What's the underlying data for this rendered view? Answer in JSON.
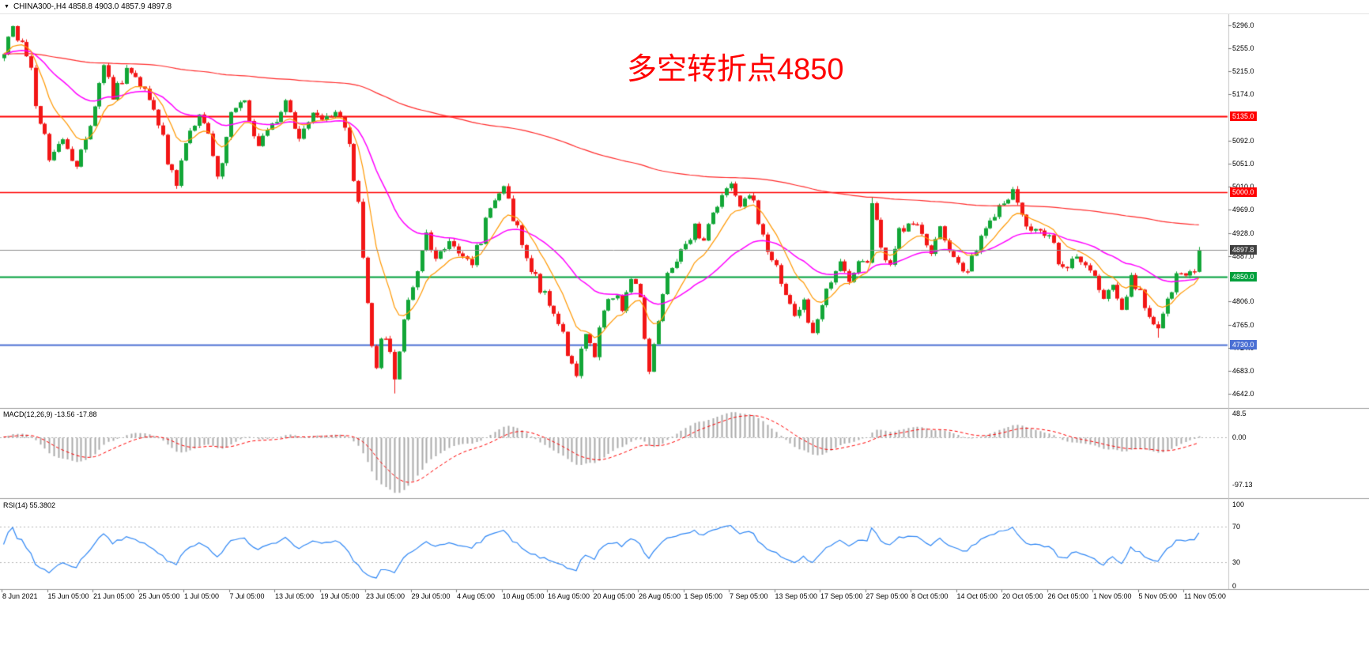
{
  "header": {
    "dropdown_icon": "▼",
    "symbol_line": "CHINA300-,H4 4858.8 4903.0 4857.9 4897.8",
    "symbol": "CHINA300-",
    "timeframe": "H4",
    "open": "4858.8",
    "high": "4903.0",
    "low": "4857.9",
    "close": "4897.8"
  },
  "annotation": {
    "text": "多空转折点4850",
    "color": "#ff0000"
  },
  "chart_data": {
    "type": "candlestick",
    "symbol": "CHINA300-",
    "timeframe": "H4",
    "x_labels": [
      "8 Jun 2021",
      "15 Jun 05:00",
      "21 Jun 05:00",
      "25 Jun 05:00",
      "1 Jul 05:00",
      "7 Jul 05:00",
      "13 Jul 05:00",
      "19 Jul 05:00",
      "23 Jul 05:00",
      "29 Jul 05:00",
      "4 Aug 05:00",
      "10 Aug 05:00",
      "16 Aug 05:00",
      "20 Aug 05:00",
      "26 Aug 05:00",
      "1 Sep 05:00",
      "7 Sep 05:00",
      "13 Sep 05:00",
      "17 Sep 05:00",
      "27 Sep 05:00",
      "8 Oct 05:00",
      "14 Oct 05:00",
      "20 Oct 05:00",
      "26 Oct 05:00",
      "1 Nov 05:00",
      "5 Nov 05:00",
      "11 Nov 05:00"
    ],
    "main": {
      "ylim": [
        4620,
        5316
      ],
      "y_ticks": [
        "5296.0",
        "5255.0",
        "5215.0",
        "5174.0",
        "5092.0",
        "5051.0",
        "5010.0",
        "4969.0",
        "4928.0",
        "4887.0",
        "4806.0",
        "4765.0",
        "4724.0",
        "4683.0",
        "4642.0"
      ],
      "price_levels": [
        {
          "value": 5135.0,
          "label": "5135.0",
          "color": "#ff0000",
          "line_color": "#ff0000",
          "line_width": 2
        },
        {
          "value": 5000.0,
          "label": "5000.0",
          "color": "#ff0000",
          "line_color": "#ff0000",
          "line_width": 1.5
        },
        {
          "value": 4850.0,
          "label": "4850.0",
          "color": "#00a03c",
          "line_color": "#00a03c",
          "line_width": 2
        },
        {
          "value": 4730.0,
          "label": "4730.0",
          "color": "#4a6fd4",
          "line_color": "#4a6fd4",
          "line_width": 2
        }
      ],
      "current_price": {
        "value": 4897.8,
        "label": "4897.8",
        "bg": "#3f3f3f",
        "line_color": "#909090"
      },
      "ohlc_current": {
        "open": 4858.8,
        "high": 4903.0,
        "low": 4857.9,
        "close": 4897.8
      },
      "bull_color": "#12a637",
      "bear_color": "#f21616",
      "first_open": 5238,
      "candles_n": 264,
      "seed": 20211111,
      "close_anchors": [
        [
          0,
          5245
        ],
        [
          2,
          5288
        ],
        [
          5,
          5255
        ],
        [
          7,
          5160
        ],
        [
          10,
          5060
        ],
        [
          13,
          5095
        ],
        [
          16,
          5040
        ],
        [
          20,
          5140
        ],
        [
          22,
          5225
        ],
        [
          24,
          5170
        ],
        [
          27,
          5215
        ],
        [
          30,
          5195
        ],
        [
          33,
          5150
        ],
        [
          36,
          5060
        ],
        [
          38,
          5015
        ],
        [
          40,
          5085
        ],
        [
          43,
          5145
        ],
        [
          45,
          5110
        ],
        [
          47,
          5030
        ],
        [
          50,
          5135
        ],
        [
          53,
          5165
        ],
        [
          56,
          5085
        ],
        [
          60,
          5125
        ],
        [
          62,
          5165
        ],
        [
          65,
          5100
        ],
        [
          68,
          5140
        ],
        [
          70,
          5130
        ],
        [
          74,
          5140
        ],
        [
          76,
          5090
        ],
        [
          78,
          4980
        ],
        [
          80,
          4790
        ],
        [
          82,
          4700
        ],
        [
          84,
          4760
        ],
        [
          86,
          4660
        ],
        [
          88,
          4780
        ],
        [
          90,
          4840
        ],
        [
          91,
          4860
        ],
        [
          93,
          4930
        ],
        [
          95,
          4880
        ],
        [
          98,
          4920
        ],
        [
          100,
          4900
        ],
        [
          103,
          4865
        ],
        [
          106,
          4950
        ],
        [
          108,
          4990
        ],
        [
          110,
          5005
        ],
        [
          112,
          4960
        ],
        [
          114,
          4900
        ],
        [
          116,
          4865
        ],
        [
          118,
          4830
        ],
        [
          120,
          4810
        ],
        [
          122,
          4770
        ],
        [
          124,
          4715
        ],
        [
          126,
          4680
        ],
        [
          128,
          4750
        ],
        [
          130,
          4720
        ],
        [
          132,
          4780
        ],
        [
          134,
          4820
        ],
        [
          136,
          4800
        ],
        [
          138,
          4840
        ],
        [
          140,
          4820
        ],
        [
          142,
          4690
        ],
        [
          143,
          4745
        ],
        [
          145,
          4820
        ],
        [
          147,
          4870
        ],
        [
          150,
          4905
        ],
        [
          152,
          4940
        ],
        [
          154,
          4915
        ],
        [
          156,
          4960
        ],
        [
          158,
          4995
        ],
        [
          160,
          5015
        ],
        [
          162,
          4980
        ],
        [
          164,
          5000
        ],
        [
          166,
          4950
        ],
        [
          168,
          4900
        ],
        [
          170,
          4870
        ],
        [
          172,
          4820
        ],
        [
          174,
          4780
        ],
        [
          176,
          4800
        ],
        [
          178,
          4748
        ],
        [
          180,
          4800
        ],
        [
          182,
          4840
        ],
        [
          184,
          4870
        ],
        [
          186,
          4850
        ],
        [
          188,
          4880
        ],
        [
          190,
          4860
        ],
        [
          191,
          4990
        ],
        [
          192,
          4940
        ],
        [
          193,
          4900
        ],
        [
          195,
          4870
        ],
        [
          197,
          4930
        ],
        [
          200,
          4950
        ],
        [
          202,
          4920
        ],
        [
          204,
          4880
        ],
        [
          206,
          4930
        ],
        [
          208,
          4900
        ],
        [
          210,
          4870
        ],
        [
          212,
          4850
        ],
        [
          214,
          4900
        ],
        [
          216,
          4930
        ],
        [
          218,
          4960
        ],
        [
          220,
          4985
        ],
        [
          222,
          5000
        ],
        [
          224,
          4960
        ],
        [
          226,
          4930
        ],
        [
          228,
          4940
        ],
        [
          230,
          4920
        ],
        [
          232,
          4880
        ],
        [
          234,
          4860
        ],
        [
          236,
          4890
        ],
        [
          238,
          4870
        ],
        [
          240,
          4850
        ],
        [
          242,
          4810
        ],
        [
          244,
          4830
        ],
        [
          246,
          4800
        ],
        [
          248,
          4850
        ],
        [
          250,
          4820
        ],
        [
          252,
          4780
        ],
        [
          254,
          4760
        ],
        [
          256,
          4810
        ],
        [
          258,
          4860
        ],
        [
          260,
          4855
        ],
        [
          262,
          4858.8
        ],
        [
          263,
          4897.8
        ]
      ],
      "forced_extremes": [
        [
          2,
          "h",
          5296
        ],
        [
          86,
          "l",
          4643
        ],
        [
          191,
          "h",
          4991
        ],
        [
          254,
          "l",
          4742
        ]
      ],
      "moving_averages": [
        {
          "name": "ma-fast",
          "period": 10,
          "color": "#ff9800",
          "width": 1.2
        },
        {
          "name": "ma-mid",
          "period": 34,
          "color": "#ff00ff",
          "width": 1.5
        },
        {
          "name": "ma-slow",
          "period": 250,
          "color": "#ff2a2a",
          "width": 1.2
        }
      ]
    },
    "indicators": {
      "macd": {
        "label": "MACD(12,26,9) -13.56 -17.88",
        "name": "MACD",
        "params": [
          12,
          26,
          9
        ],
        "value_main": -13.56,
        "value_signal": -17.88,
        "ticks": [
          "48.5",
          "0.00",
          "-97.13"
        ],
        "tick_values": [
          48.5,
          0,
          -97.13
        ],
        "hist_color": "#ababab",
        "signal_color": "#ff0000",
        "zero_line_color": "#b5b5b5"
      },
      "rsi": {
        "label": "RSI(14) 55.3802",
        "name": "RSI",
        "period": 14,
        "value": 55.3802,
        "ticks": [
          "100",
          "70",
          "30",
          "0"
        ],
        "tick_values": [
          100,
          70,
          30,
          0
        ],
        "levels": [
          70,
          30
        ],
        "line_color": "#2f87f5",
        "level_line_color": "#b5b5b5",
        "range": [
          0,
          100
        ]
      }
    }
  }
}
